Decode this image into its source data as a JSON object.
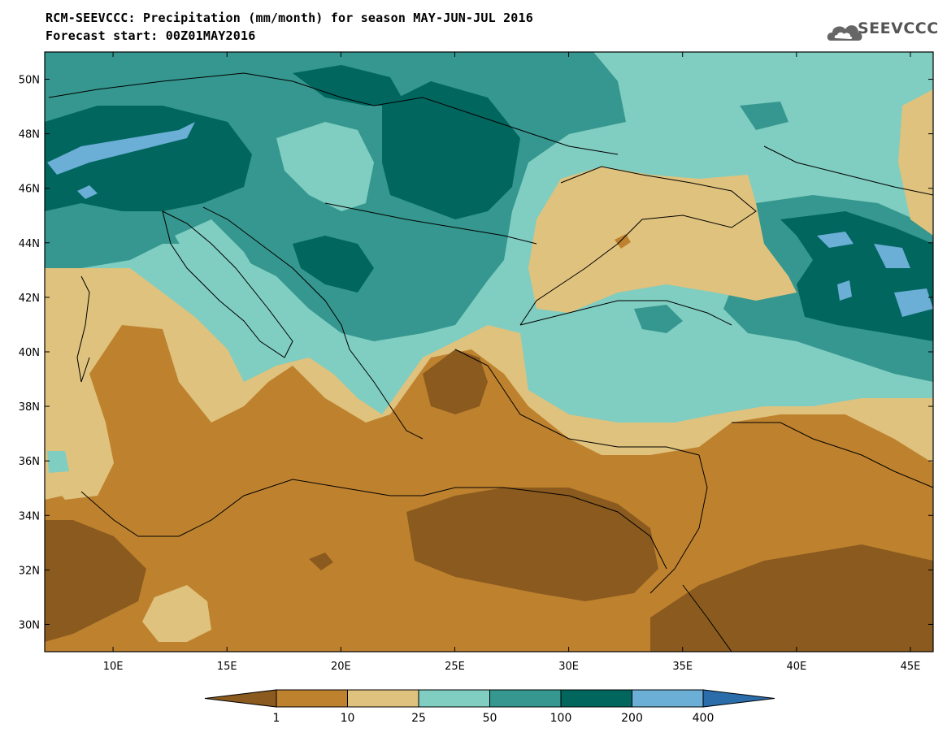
{
  "header": {
    "title": "RCM-SEEVCCC: Precipitation (mm/month) for season MAY-JUN-JUL 2016",
    "subtitle": "Forecast start: 00Z01MAY2016"
  },
  "logo": {
    "text": "SEEVCCC",
    "icon": "cloud-logo-icon"
  },
  "map": {
    "lat_ticks": [
      "50N",
      "48N",
      "46N",
      "44N",
      "42N",
      "40N",
      "38N",
      "36N",
      "34N",
      "32N",
      "30N"
    ],
    "lon_ticks": [
      "10E",
      "15E",
      "20E",
      "25E",
      "30E",
      "35E",
      "40E",
      "45E"
    ],
    "lat_range": [
      29,
      51
    ],
    "lon_range": [
      7,
      46
    ]
  },
  "colorbar": {
    "labels": [
      "1",
      "10",
      "25",
      "50",
      "100",
      "200",
      "400"
    ],
    "colors": {
      "lt1": "#8B5A1E",
      "1_10": "#BE822F",
      "10_25": "#DFC27D",
      "25_50": "#80CDC1",
      "50_100": "#35978F",
      "100_200": "#01665E",
      "200_400": "#6BAED6",
      "gt400": "#2B6DAB"
    }
  }
}
